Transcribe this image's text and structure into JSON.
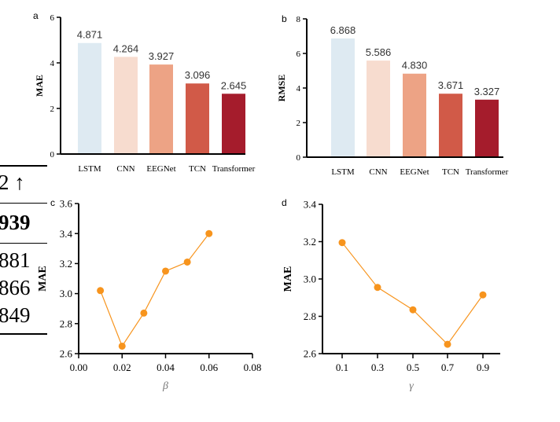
{
  "table_fragment": {
    "header": "2 ↑",
    "rows": [
      "939",
      "881",
      "866",
      "849"
    ]
  },
  "chart_data": [
    {
      "panel": "a",
      "type": "bar",
      "categories": [
        "LSTM",
        "CNN",
        "EEGNet",
        "TCN",
        "Transformer"
      ],
      "values": [
        4.871,
        4.264,
        3.927,
        3.096,
        2.645
      ],
      "labels": [
        "4.871",
        "4.264",
        "3.927",
        "3.096",
        "2.645"
      ],
      "ylabel": "MAE",
      "ylim": [
        0,
        6
      ],
      "yticks": [
        "0",
        "2",
        "4",
        "6"
      ],
      "colors": [
        "#deeaf2",
        "#f7dccf",
        "#eda385",
        "#d15a48",
        "#a51c2c"
      ]
    },
    {
      "panel": "b",
      "type": "bar",
      "categories": [
        "LSTM",
        "CNN",
        "EEGNet",
        "TCN",
        "Transformer"
      ],
      "values": [
        6.868,
        5.586,
        4.83,
        3.671,
        3.327
      ],
      "labels": [
        "6.868",
        "5.586",
        "4.830",
        "3.671",
        "3.327"
      ],
      "ylabel": "RMSE",
      "ylim": [
        0,
        8
      ],
      "yticks": [
        "0",
        "2",
        "4",
        "6",
        "8"
      ],
      "colors": [
        "#deeaf2",
        "#f7dccf",
        "#eda385",
        "#d15a48",
        "#a51c2c"
      ]
    },
    {
      "panel": "c",
      "type": "line",
      "x": [
        0.01,
        0.02,
        0.03,
        0.04,
        0.05,
        0.06
      ],
      "y": [
        3.02,
        2.65,
        2.87,
        3.15,
        3.21,
        3.4
      ],
      "xlabel": "β",
      "ylabel": "MAE",
      "xlim": [
        0,
        0.08
      ],
      "ylim": [
        2.6,
        3.6
      ],
      "xticks": [
        "0.00",
        "0.02",
        "0.04",
        "0.06",
        "0.08"
      ],
      "yticks": [
        "2.6",
        "2.8",
        "3.0",
        "3.2",
        "3.4",
        "3.6"
      ],
      "color": "#f7941d"
    },
    {
      "panel": "d",
      "type": "line",
      "x": [
        "0.1",
        "0.3",
        "0.5",
        "0.7",
        "0.9"
      ],
      "y": [
        3.195,
        2.955,
        2.835,
        2.65,
        2.915
      ],
      "xlabel": "γ",
      "ylabel": "MAE",
      "ylim": [
        2.6,
        3.4
      ],
      "yticks": [
        "2.6",
        "2.8",
        "3.0",
        "3.2",
        "3.4"
      ],
      "color": "#f7941d"
    }
  ]
}
